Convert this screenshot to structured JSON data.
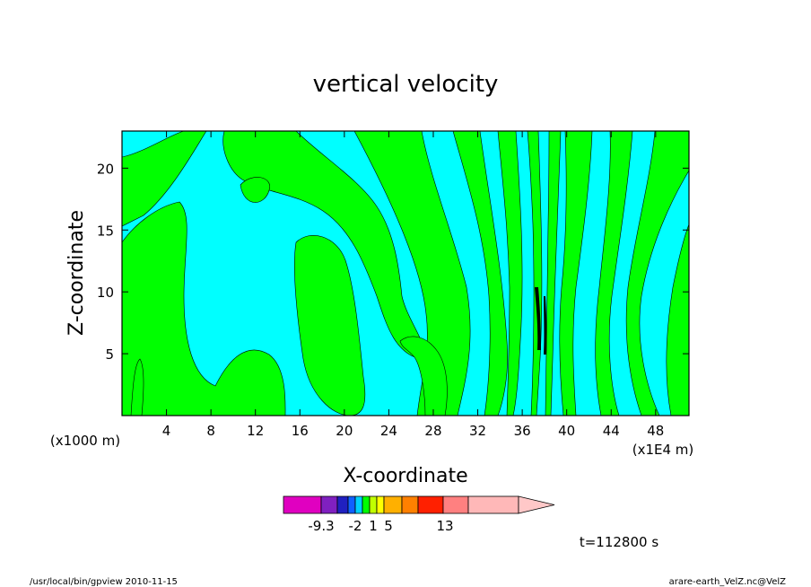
{
  "chart_data": {
    "type": "heatmap",
    "title": "vertical velocity",
    "xlabel": "X-coordinate",
    "ylabel": "Z-coordinate",
    "x_unit_left": "(x1000 m)",
    "x_unit_right": "(x1E4 m)",
    "xlim": [
      0,
      51
    ],
    "ylim": [
      0,
      23
    ],
    "x_ticks": [
      "4",
      "8",
      "12",
      "16",
      "20",
      "24",
      "28",
      "32",
      "36",
      "40",
      "44",
      "48"
    ],
    "x_tick_values": [
      4,
      8,
      12,
      16,
      20,
      24,
      28,
      32,
      36,
      40,
      44,
      48
    ],
    "y_ticks": [
      "5",
      "10",
      "15",
      "20"
    ],
    "y_tick_values": [
      5,
      10,
      15,
      20
    ],
    "time_label": "t=112800 s",
    "colorbar": {
      "colors": [
        "#e000c0",
        "#8020c0",
        "#2020c0",
        "#1060ff",
        "#00d0ff",
        "#00ff00",
        "#c0ff00",
        "#ffff00",
        "#ffb000",
        "#ff8000",
        "#ff2000",
        "#ff8080",
        "#ffb8b8",
        "#ffc8c8"
      ],
      "labels": [
        "-9.3",
        "-2",
        "1",
        "5",
        "13"
      ]
    },
    "fill_colors": {
      "negative": "#00ffff",
      "positive": "#00ff00",
      "strong": "#000000"
    }
  },
  "footer": {
    "left": "/usr/local/bin/gpview   2010-11-15",
    "right": "arare-earth_VelZ.nc@VelZ"
  }
}
